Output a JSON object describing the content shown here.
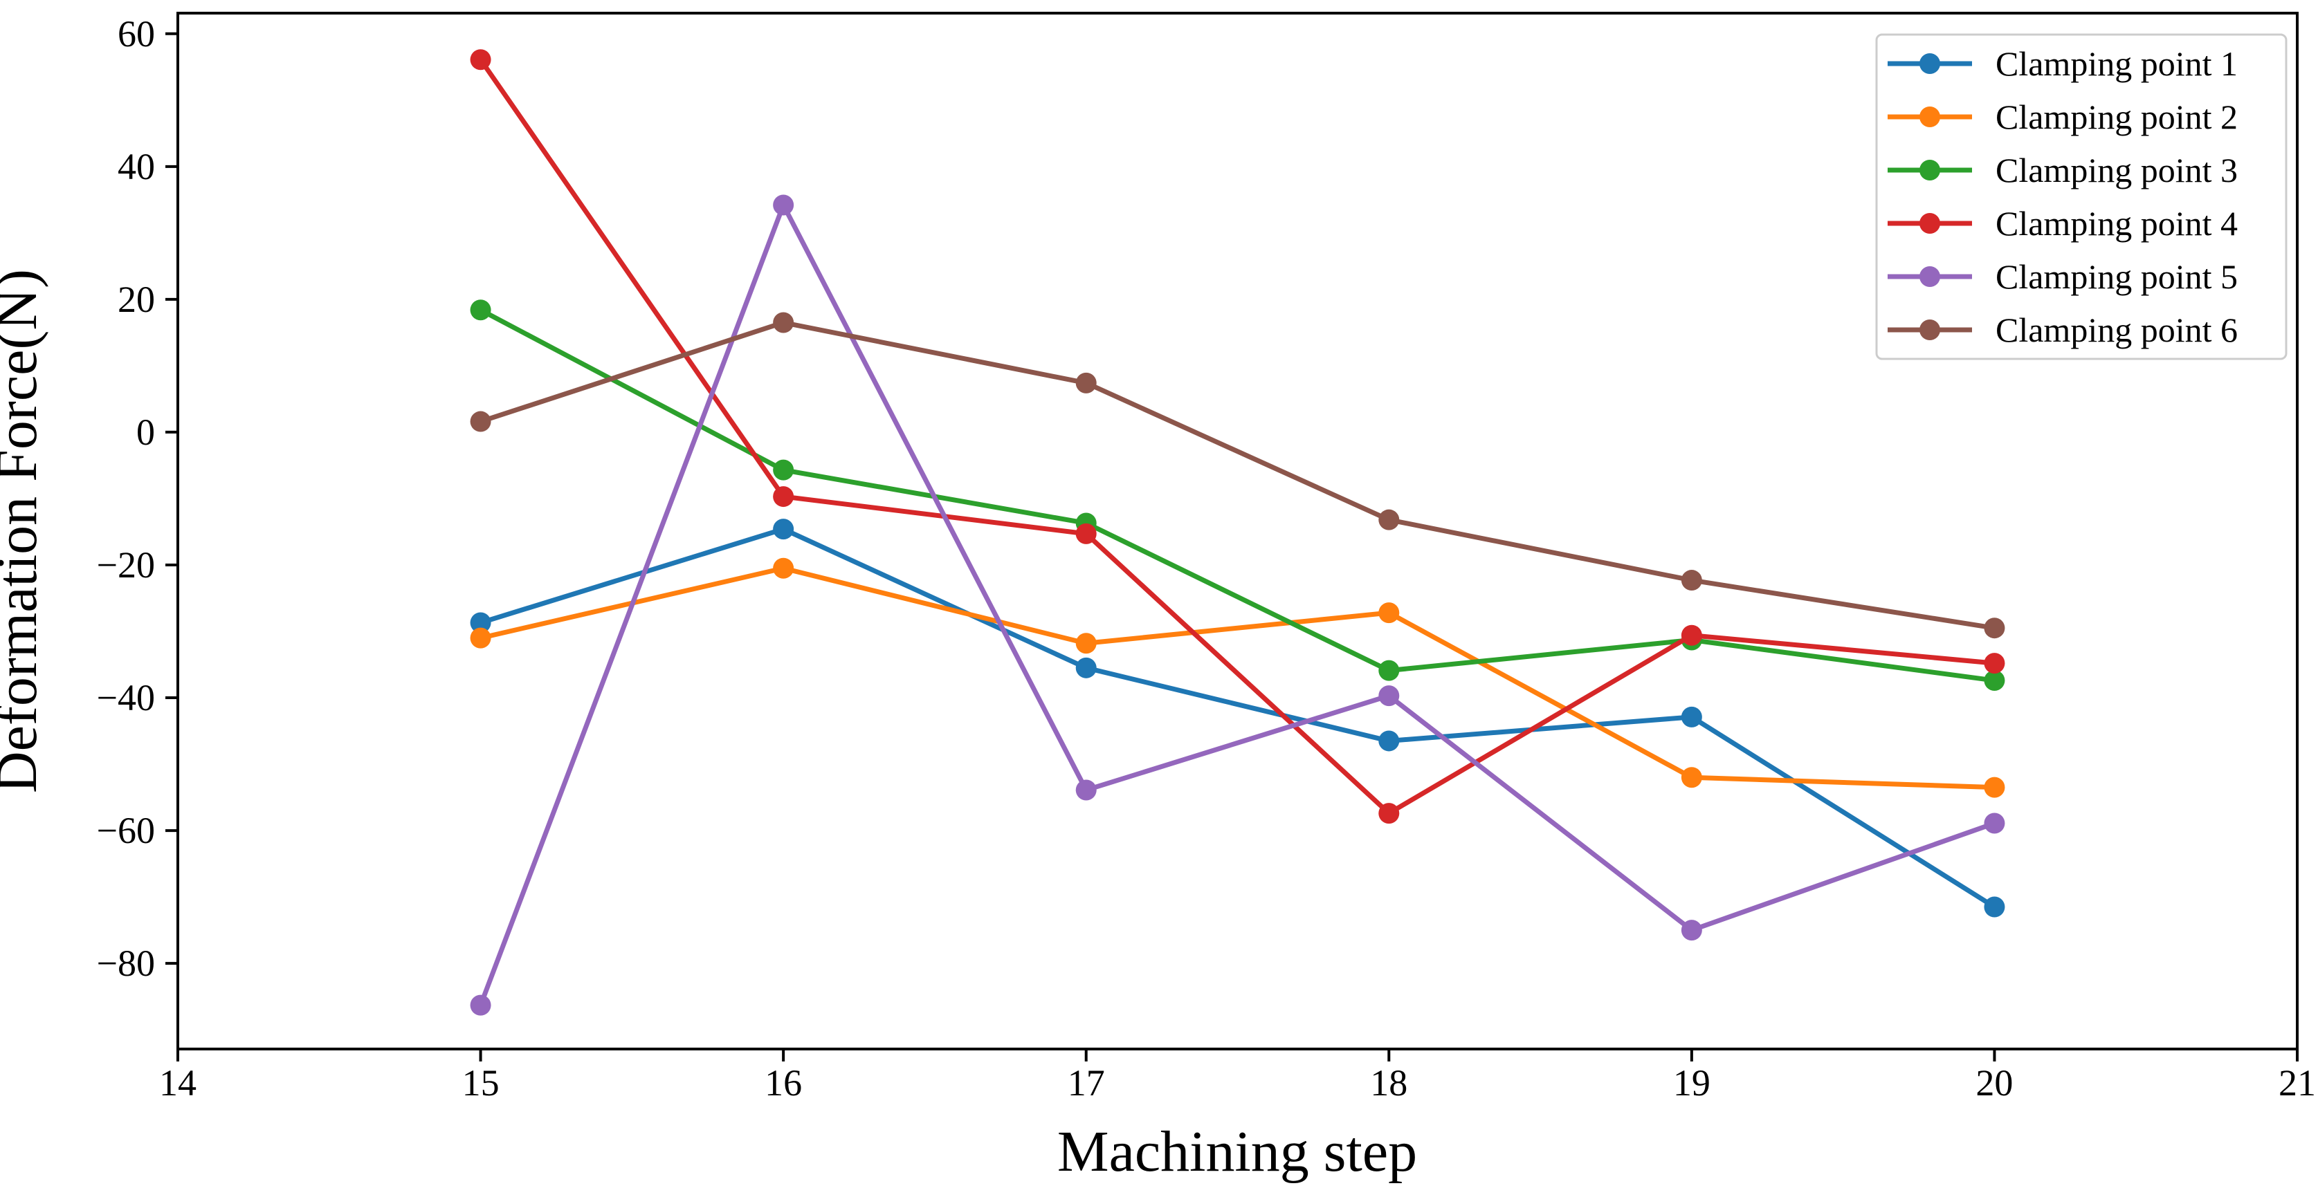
{
  "chart_data": {
    "type": "line",
    "title": "",
    "xlabel": "Machining step",
    "ylabel": "Deformation Force(N)",
    "x": [
      15,
      16,
      17,
      18,
      19,
      20
    ],
    "xlim": [
      14,
      21
    ],
    "ylim": [
      -92.9,
      63.1
    ],
    "xtick_values": [
      14,
      15,
      16,
      17,
      18,
      19,
      20,
      21
    ],
    "xtick_labels": [
      "14",
      "15",
      "16",
      "17",
      "18",
      "19",
      "20",
      "21"
    ],
    "ytick_values": [
      60,
      40,
      20,
      0,
      -20,
      -40,
      -60,
      -80
    ],
    "ytick_labels": [
      "60",
      "40",
      "20",
      "0",
      "−20",
      "−40",
      "−60",
      "−80"
    ],
    "grid": false,
    "marker": "circle",
    "legend": {
      "position": "upper right",
      "border_color": "#cccccc",
      "background": "#ffffff"
    },
    "series": [
      {
        "name": "Clamping point 1",
        "color": "#1f77b4",
        "values": [
          -28.7,
          -14.6,
          -35.5,
          -46.5,
          -42.9,
          -71.5
        ]
      },
      {
        "name": "Clamping point 2",
        "color": "#ff7f0e",
        "values": [
          -31.0,
          -20.5,
          -31.8,
          -27.2,
          -52.0,
          -53.5
        ]
      },
      {
        "name": "Clamping point 3",
        "color": "#2ca02c",
        "values": [
          18.4,
          -5.7,
          -13.7,
          -35.9,
          -31.3,
          -37.4
        ]
      },
      {
        "name": "Clamping point 4",
        "color": "#d62728",
        "values": [
          56.1,
          -9.7,
          -15.3,
          -57.4,
          -30.6,
          -34.8
        ]
      },
      {
        "name": "Clamping point 5",
        "color": "#9467bd",
        "values": [
          -86.3,
          34.2,
          -53.9,
          -39.7,
          -75.0,
          -58.9
        ]
      },
      {
        "name": "Clamping point 6",
        "color": "#8c564b",
        "values": [
          1.6,
          16.5,
          7.4,
          -13.2,
          -22.3,
          -29.5
        ]
      }
    ]
  },
  "styles": {
    "axis_color": "#000000",
    "background": "#ffffff"
  }
}
